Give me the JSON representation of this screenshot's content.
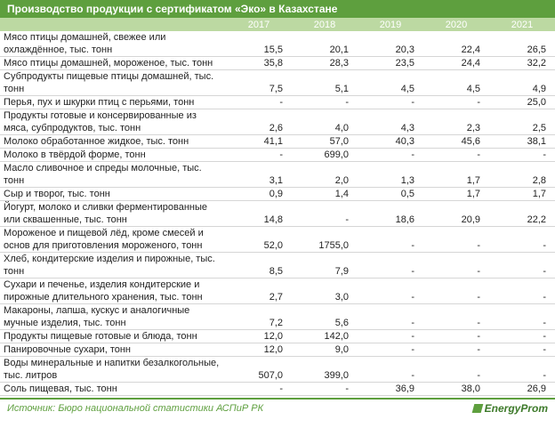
{
  "header": {
    "title": "Производство продукции с сертификатом «Эко» в Казахстане"
  },
  "table": {
    "columns": [
      "2017",
      "2018",
      "2019",
      "2020",
      "2021"
    ],
    "rows": [
      [
        "Мясо птицы домашней, свежее или охлаждённое, тыс. тонн",
        "15,5",
        "20,1",
        "20,3",
        "22,4",
        "26,5"
      ],
      [
        "Мясо птицы домашней, мороженое, тыс. тонн",
        "35,8",
        "28,3",
        "23,5",
        "24,4",
        "32,2"
      ],
      [
        "Субпродукты пищевые птицы домашней, тыс. тонн",
        "7,5",
        "5,1",
        "4,5",
        "4,5",
        "4,9"
      ],
      [
        "Перья, пух и шкурки птиц с перьями, тонн",
        "-",
        "-",
        "-",
        "-",
        "25,0"
      ],
      [
        "Продукты готовые и консервированные из мяса, субпродуктов, тыс. тонн",
        "2,6",
        "4,0",
        "4,3",
        "2,3",
        "2,5"
      ],
      [
        "Молоко обработанное жидкое, тыс. тонн",
        "41,1",
        "57,0",
        "40,3",
        "45,6",
        "38,1"
      ],
      [
        "Молоко в твёрдой форме, тонн",
        "-",
        "699,0",
        "-",
        "-",
        "-"
      ],
      [
        "Масло сливочное и спреды молочные, тыс. тонн",
        "3,1",
        "2,0",
        "1,3",
        "1,7",
        "2,8"
      ],
      [
        "Сыр и творог, тыс. тонн",
        "0,9",
        "1,4",
        "0,5",
        "1,7",
        "1,7"
      ],
      [
        "Йогурт, молоко и сливки ферментированные или сквашенные, тыс. тонн",
        "14,8",
        "-",
        "18,6",
        "20,9",
        "22,2"
      ],
      [
        "Мороженое и пищевой лёд, кроме смесей и основ для приготовления мороженого, тонн",
        "52,0",
        "1755,0",
        "-",
        "-",
        "-"
      ],
      [
        "Хлеб, кондитерские изделия и пирожные, тыс. тонн",
        "8,5",
        "7,9",
        "-",
        "-",
        "-"
      ],
      [
        "Сухари и печенье, изделия кондитерские и пирожные длительного хранения, тыс. тонн",
        "2,7",
        "3,0",
        "-",
        "-",
        "-"
      ],
      [
        "Макароны, лапша, кускус и аналогичные мучные изделия, тыс. тонн",
        "7,2",
        "5,6",
        "-",
        "-",
        "-"
      ],
      [
        "Продукты пищевые готовые и блюда, тонн",
        "12,0",
        "142,0",
        "-",
        "-",
        "-"
      ],
      [
        "Панировочные сухари, тонн",
        "12,0",
        "9,0",
        "-",
        "-",
        "-"
      ],
      [
        "Воды минеральные и напитки безалкогольные, тыс. литров",
        "507,0",
        "399,0",
        "-",
        "-",
        "-"
      ],
      [
        "Соль пищевая, тыс. тонн",
        "-",
        "-",
        "36,9",
        "38,0",
        "26,9"
      ]
    ]
  },
  "footer": {
    "source": "Источник: Бюро национальной статистики АСПиР РК",
    "logo": "EnergyProm"
  }
}
